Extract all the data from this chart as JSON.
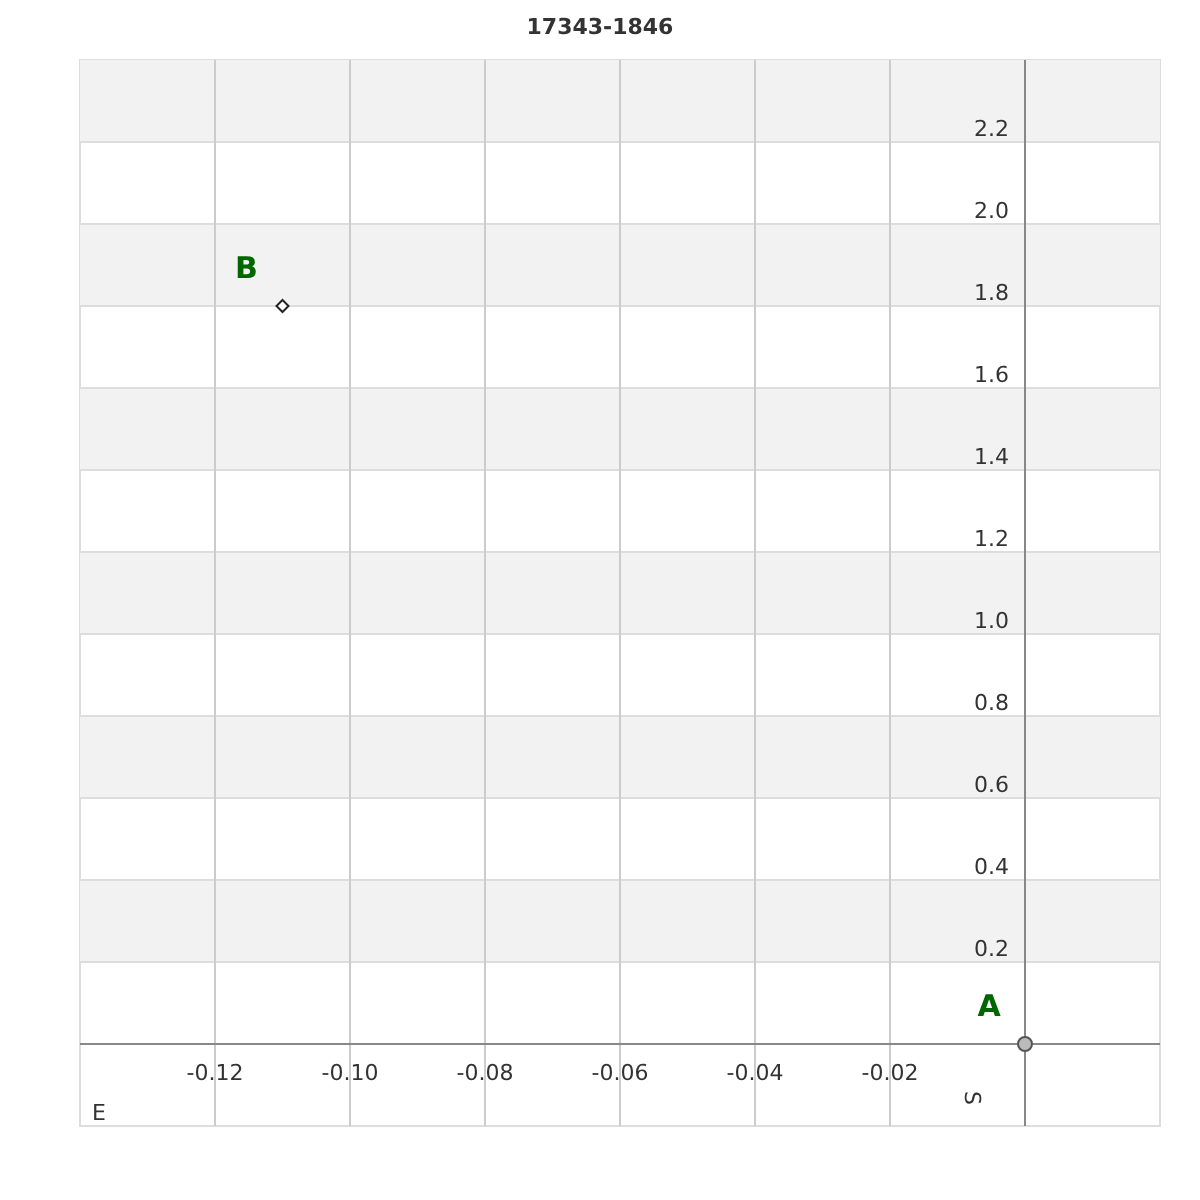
{
  "chart_data": {
    "type": "scatter",
    "title": "17343-1846",
    "xlabel": "E",
    "ylabel": "S",
    "xlim": [
      -0.14,
      0.02
    ],
    "ylim": [
      -0.2,
      2.4
    ],
    "xticks": [
      -0.12,
      {
        "value": -0.1,
        "label": "-0.10"
      },
      -0.08,
      -0.06,
      -0.04,
      -0.02
    ],
    "yticks": [
      0.2,
      0.4,
      0.6,
      0.8,
      {
        "value": 1,
        "label": "1.0"
      },
      1.2,
      1.4,
      1.6,
      1.8,
      {
        "value": 2,
        "label": "2.0"
      },
      2.2
    ],
    "grid": true,
    "series": [
      {
        "x": [
          0
        ],
        "values": [
          0
        ],
        "color": "#555555",
        "marker": "circle"
      },
      {
        "x": [
          -0.11
        ],
        "values": [
          1.8
        ],
        "color": "#222222",
        "marker": "diamond"
      }
    ],
    "annotations": [
      {
        "text": "A",
        "x": 0,
        "y": 0
      },
      {
        "text": "B",
        "x": -0.11,
        "y": 1.8
      }
    ]
  }
}
